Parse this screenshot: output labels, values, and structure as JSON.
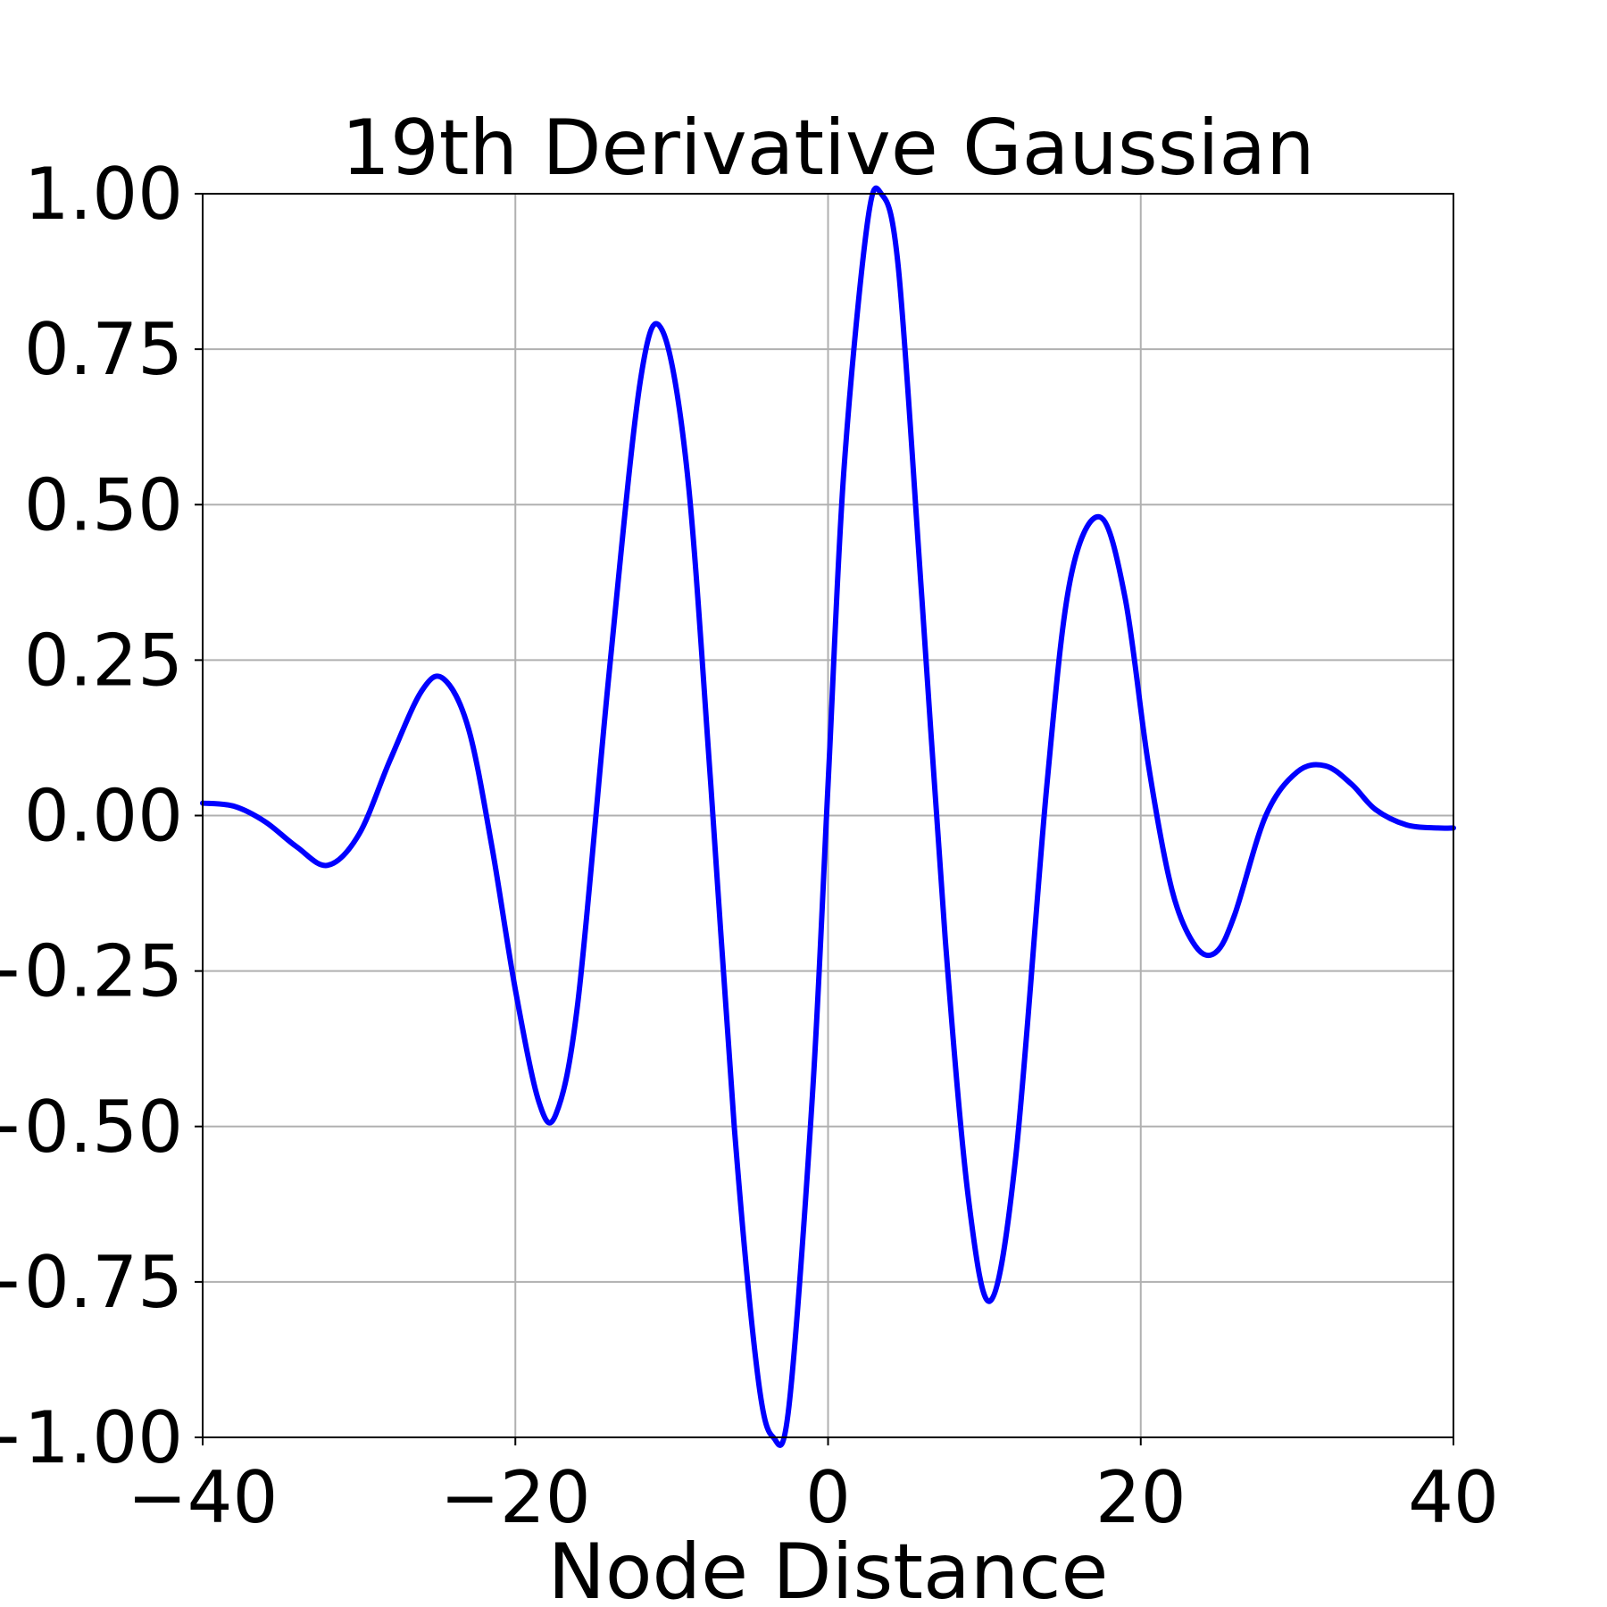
{
  "chart_data": {
    "type": "line",
    "title": "19th Derivative Gaussian",
    "xlabel": "Node Distance",
    "ylabel": "",
    "xlim": [
      -40,
      40
    ],
    "ylim": [
      -1.0,
      1.0
    ],
    "grid": true,
    "x_ticks": [
      -40,
      -20,
      0,
      20,
      40
    ],
    "x_tick_labels": [
      "−40",
      "−20",
      "0",
      "20",
      "40"
    ],
    "y_ticks": [
      -1.0,
      -0.75,
      -0.5,
      -0.25,
      0.0,
      0.25,
      0.5,
      0.75,
      1.0
    ],
    "y_tick_labels": [
      "−1.00",
      "−0.75",
      "−0.50",
      "−0.25",
      "0.00",
      "0.25",
      "0.50",
      "0.75",
      "1.00"
    ],
    "series": [
      {
        "color": "#0000ff",
        "x": [
          -40,
          -38,
          -36,
          -34,
          -32,
          -30,
          -28,
          -26,
          -24.6,
          -23,
          -21.5,
          -20,
          -18.5,
          -17.4,
          -16,
          -14,
          -12,
          -10.6,
          -9,
          -7.5,
          -6,
          -4.5,
          -3.5,
          -2.5,
          -1,
          0,
          1,
          2.5,
          3.4,
          4.5,
          6,
          7.5,
          9,
          10.4,
          12,
          14,
          15.5,
          17.4,
          19,
          20.5,
          22,
          23.5,
          24.8,
          26,
          28,
          30,
          31.8,
          33.5,
          35,
          37,
          39,
          40
        ],
        "y": [
          0.02,
          0.015,
          -0.01,
          -0.05,
          -0.08,
          -0.03,
          0.09,
          0.2,
          0.22,
          0.14,
          -0.05,
          -0.28,
          -0.46,
          -0.48,
          -0.3,
          0.23,
          0.7,
          0.78,
          0.55,
          0.05,
          -0.5,
          -0.9,
          -1.0,
          -0.95,
          -0.45,
          0.05,
          0.55,
          0.95,
          1.0,
          0.88,
          0.35,
          -0.2,
          -0.62,
          -0.78,
          -0.55,
          0.05,
          0.38,
          0.48,
          0.35,
          0.08,
          -0.12,
          -0.21,
          -0.22,
          -0.16,
          0.0,
          0.07,
          0.08,
          0.05,
          0.01,
          -0.015,
          -0.02,
          -0.02
        ]
      }
    ]
  }
}
